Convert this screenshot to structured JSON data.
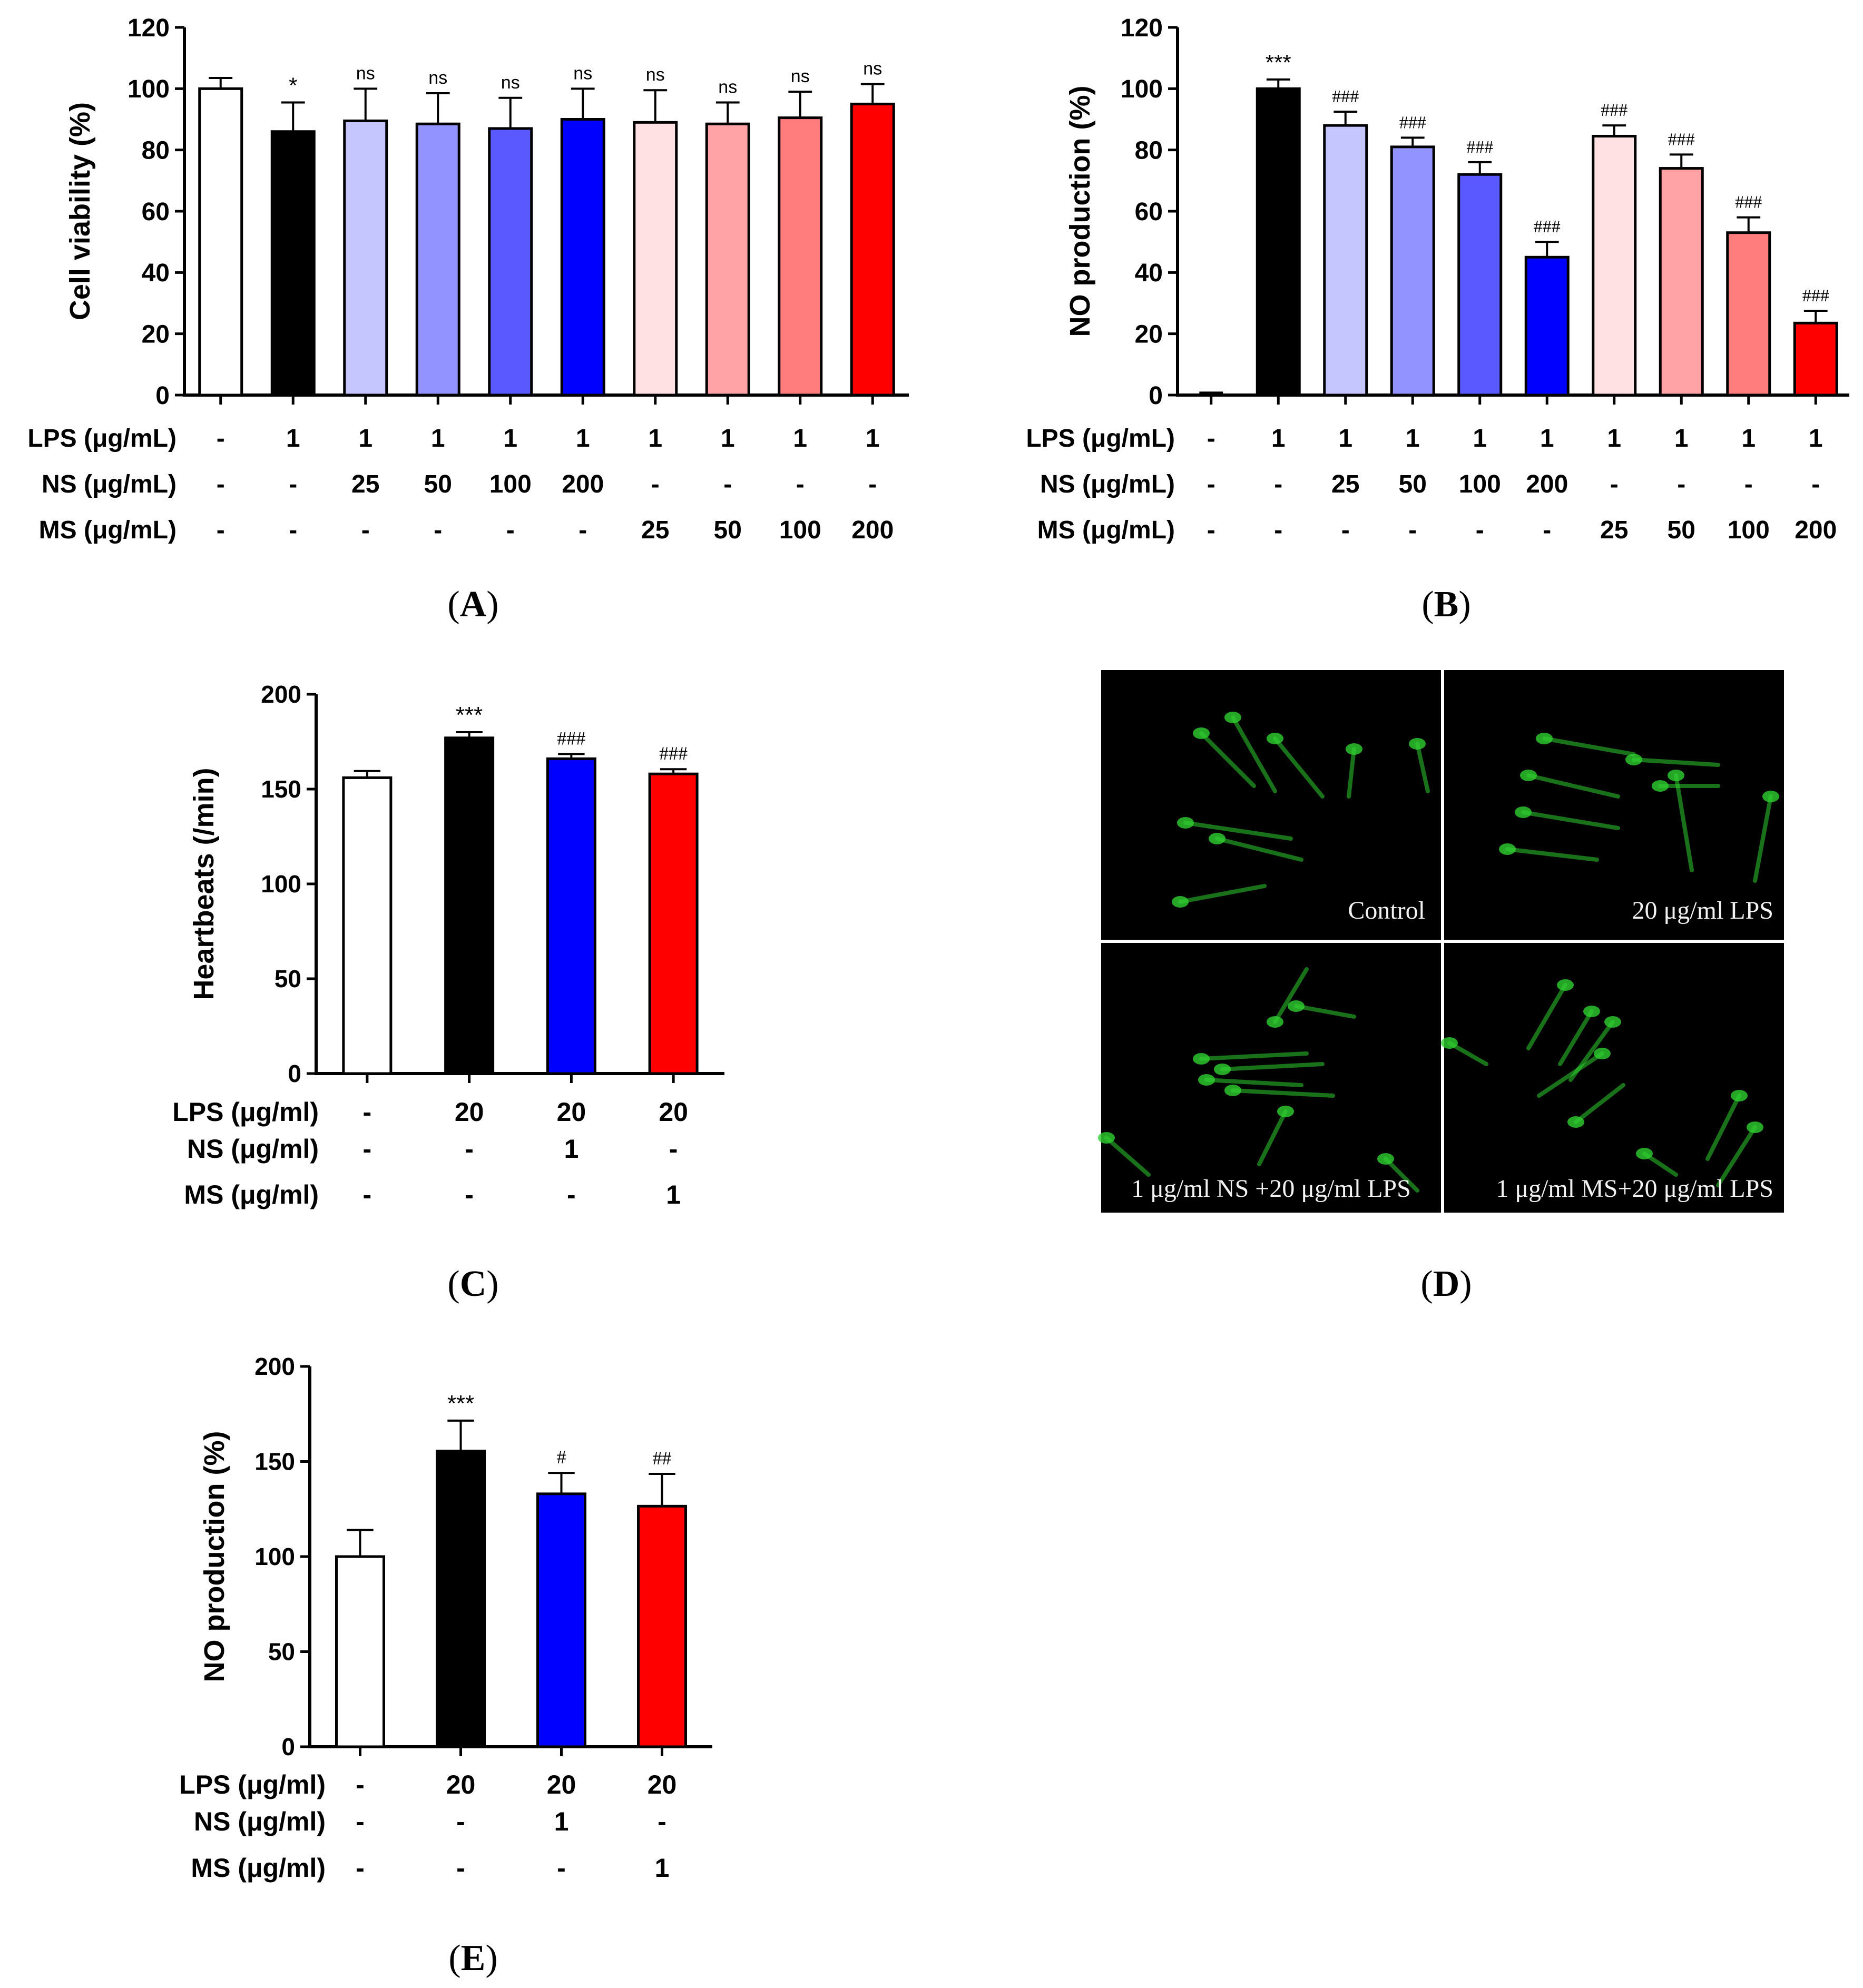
{
  "colors": {
    "white": "#ffffff",
    "black": "#000000",
    "ns_25": "#c6c6ff",
    "ns_50": "#9393ff",
    "ns_100": "#5959ff",
    "ns_200": "#0000ff",
    "ms_25": "#ffe0e3",
    "ms_50": "#ffa3a6",
    "ms_100": "#ff7d7d",
    "ms_200": "#ff0000",
    "photo_background": "#000000",
    "fluorescence": "#2fcf2f"
  },
  "panels": [
    {
      "label": "(A)",
      "label_parts": [
        "(",
        "A",
        ")"
      ],
      "chart_data": {
        "type": "bar",
        "ylabel": "Cell viability (%)",
        "xlabel": "",
        "ylim": [
          0,
          120
        ],
        "yticks": [
          "0",
          "20",
          "40",
          "60",
          "80",
          "100",
          "120"
        ],
        "values": [
          100,
          86,
          89.5,
          88.5,
          87,
          90,
          89,
          88.5,
          90.5,
          95
        ],
        "errors": [
          3.5,
          9.5,
          10.5,
          10,
          10,
          10,
          10.5,
          7,
          8.5,
          6.5
        ],
        "annotations": [
          "",
          "*",
          "ns",
          "ns",
          "ns",
          "ns",
          "ns",
          "ns",
          "ns",
          "ns"
        ],
        "colors": [
          "white",
          "black",
          "ns_25",
          "ns_50",
          "ns_100",
          "ns_200",
          "ms_25",
          "ms_50",
          "ms_100",
          "ms_200"
        ],
        "treatment_rows": [
          {
            "label": "LPS (μg/mL)",
            "values": [
              "-",
              "1",
              "1",
              "1",
              "1",
              "1",
              "1",
              "1",
              "1",
              "1"
            ]
          },
          {
            "label": "NS (μg/mL)",
            "values": [
              "-",
              "-",
              "25",
              "50",
              "100",
              "200",
              "-",
              "-",
              "-",
              "-"
            ]
          },
          {
            "label": "MS (μg/mL)",
            "values": [
              "-",
              "-",
              "-",
              "-",
              "-",
              "-",
              "25",
              "50",
              "100",
              "200"
            ]
          }
        ]
      }
    },
    {
      "label": "(B)",
      "label_parts": [
        "(",
        "B",
        ")"
      ],
      "chart_data": {
        "type": "bar",
        "ylabel": "NO production (%)",
        "xlabel": "",
        "ylim": [
          0,
          120
        ],
        "yticks": [
          "0",
          "20",
          "40",
          "60",
          "80",
          "100",
          "120"
        ],
        "values": [
          0,
          100,
          88,
          81,
          72,
          45,
          84.5,
          74,
          53,
          23.5
        ],
        "errors": [
          0.8,
          3,
          4.5,
          3,
          4,
          5,
          3.5,
          4.5,
          5,
          4
        ],
        "annotations": [
          "",
          "***",
          "###",
          "###",
          "###",
          "###",
          "###",
          "###",
          "###",
          "###"
        ],
        "colors": [
          "white",
          "black",
          "ns_25",
          "ns_50",
          "ns_100",
          "ns_200",
          "ms_25",
          "ms_50",
          "ms_100",
          "ms_200"
        ],
        "treatment_rows": [
          {
            "label": "LPS (μg/mL)",
            "values": [
              "-",
              "1",
              "1",
              "1",
              "1",
              "1",
              "1",
              "1",
              "1",
              "1"
            ]
          },
          {
            "label": "NS (μg/mL)",
            "values": [
              "-",
              "-",
              "25",
              "50",
              "100",
              "200",
              "-",
              "-",
              "-",
              "-"
            ]
          },
          {
            "label": "MS (μg/mL)",
            "values": [
              "-",
              "-",
              "-",
              "-",
              "-",
              "-",
              "25",
              "50",
              "100",
              "200"
            ]
          }
        ]
      }
    },
    {
      "label": "(C)",
      "label_parts": [
        "(",
        "C",
        ")"
      ],
      "chart_data": {
        "type": "bar",
        "ylabel": "Heartbeats (/min)",
        "xlabel": "",
        "ylim": [
          0,
          200
        ],
        "yticks": [
          "0",
          "50",
          "100",
          "150",
          "200"
        ],
        "values": [
          156,
          177,
          166,
          158
        ],
        "errors": [
          3.5,
          3,
          2.5,
          2.5
        ],
        "annotations": [
          "",
          "***",
          "###",
          "###"
        ],
        "colors": [
          "white",
          "black",
          "ns_200",
          "ms_200"
        ],
        "treatment_rows": [
          {
            "label": "LPS (μg/ml)",
            "values": [
              "-",
              "20",
              "20",
              "20"
            ]
          },
          {
            "label": "NS (μg/ml)",
            "values": [
              "-",
              "-",
              "1",
              "-"
            ]
          },
          {
            "label": "MS (μg/ml)",
            "values": [
              "-",
              "-",
              "-",
              "1"
            ]
          }
        ]
      }
    },
    {
      "label": "(D)",
      "label_parts": [
        "(",
        "D",
        ")"
      ],
      "photo_labels": [
        "Control",
        "20 μg/ml LPS",
        "1 μg/ml NS +20 μg/ml LPS",
        "1 μg/ml MS+20 μg/ml LPS"
      ]
    },
    {
      "label": "(E)",
      "label_parts": [
        "(",
        "E",
        ")"
      ],
      "chart_data": {
        "type": "bar",
        "ylabel": "NO production (%)",
        "xlabel": "",
        "ylim": [
          0,
          200
        ],
        "yticks": [
          "0",
          "50",
          "100",
          "150",
          "200"
        ],
        "values": [
          100,
          155.5,
          133,
          126.5
        ],
        "errors": [
          14,
          16,
          11,
          17
        ],
        "annotations": [
          "",
          "***",
          "#",
          "##"
        ],
        "colors": [
          "white",
          "black",
          "ns_200",
          "ms_200"
        ],
        "treatment_rows": [
          {
            "label": "LPS (μg/ml)",
            "values": [
              "-",
              "20",
              "20",
              "20"
            ]
          },
          {
            "label": "NS (μg/ml)",
            "values": [
              "-",
              "-",
              "1",
              "-"
            ]
          },
          {
            "label": "MS (μg/ml)",
            "values": [
              "-",
              "-",
              "-",
              "1"
            ]
          }
        ]
      }
    }
  ]
}
